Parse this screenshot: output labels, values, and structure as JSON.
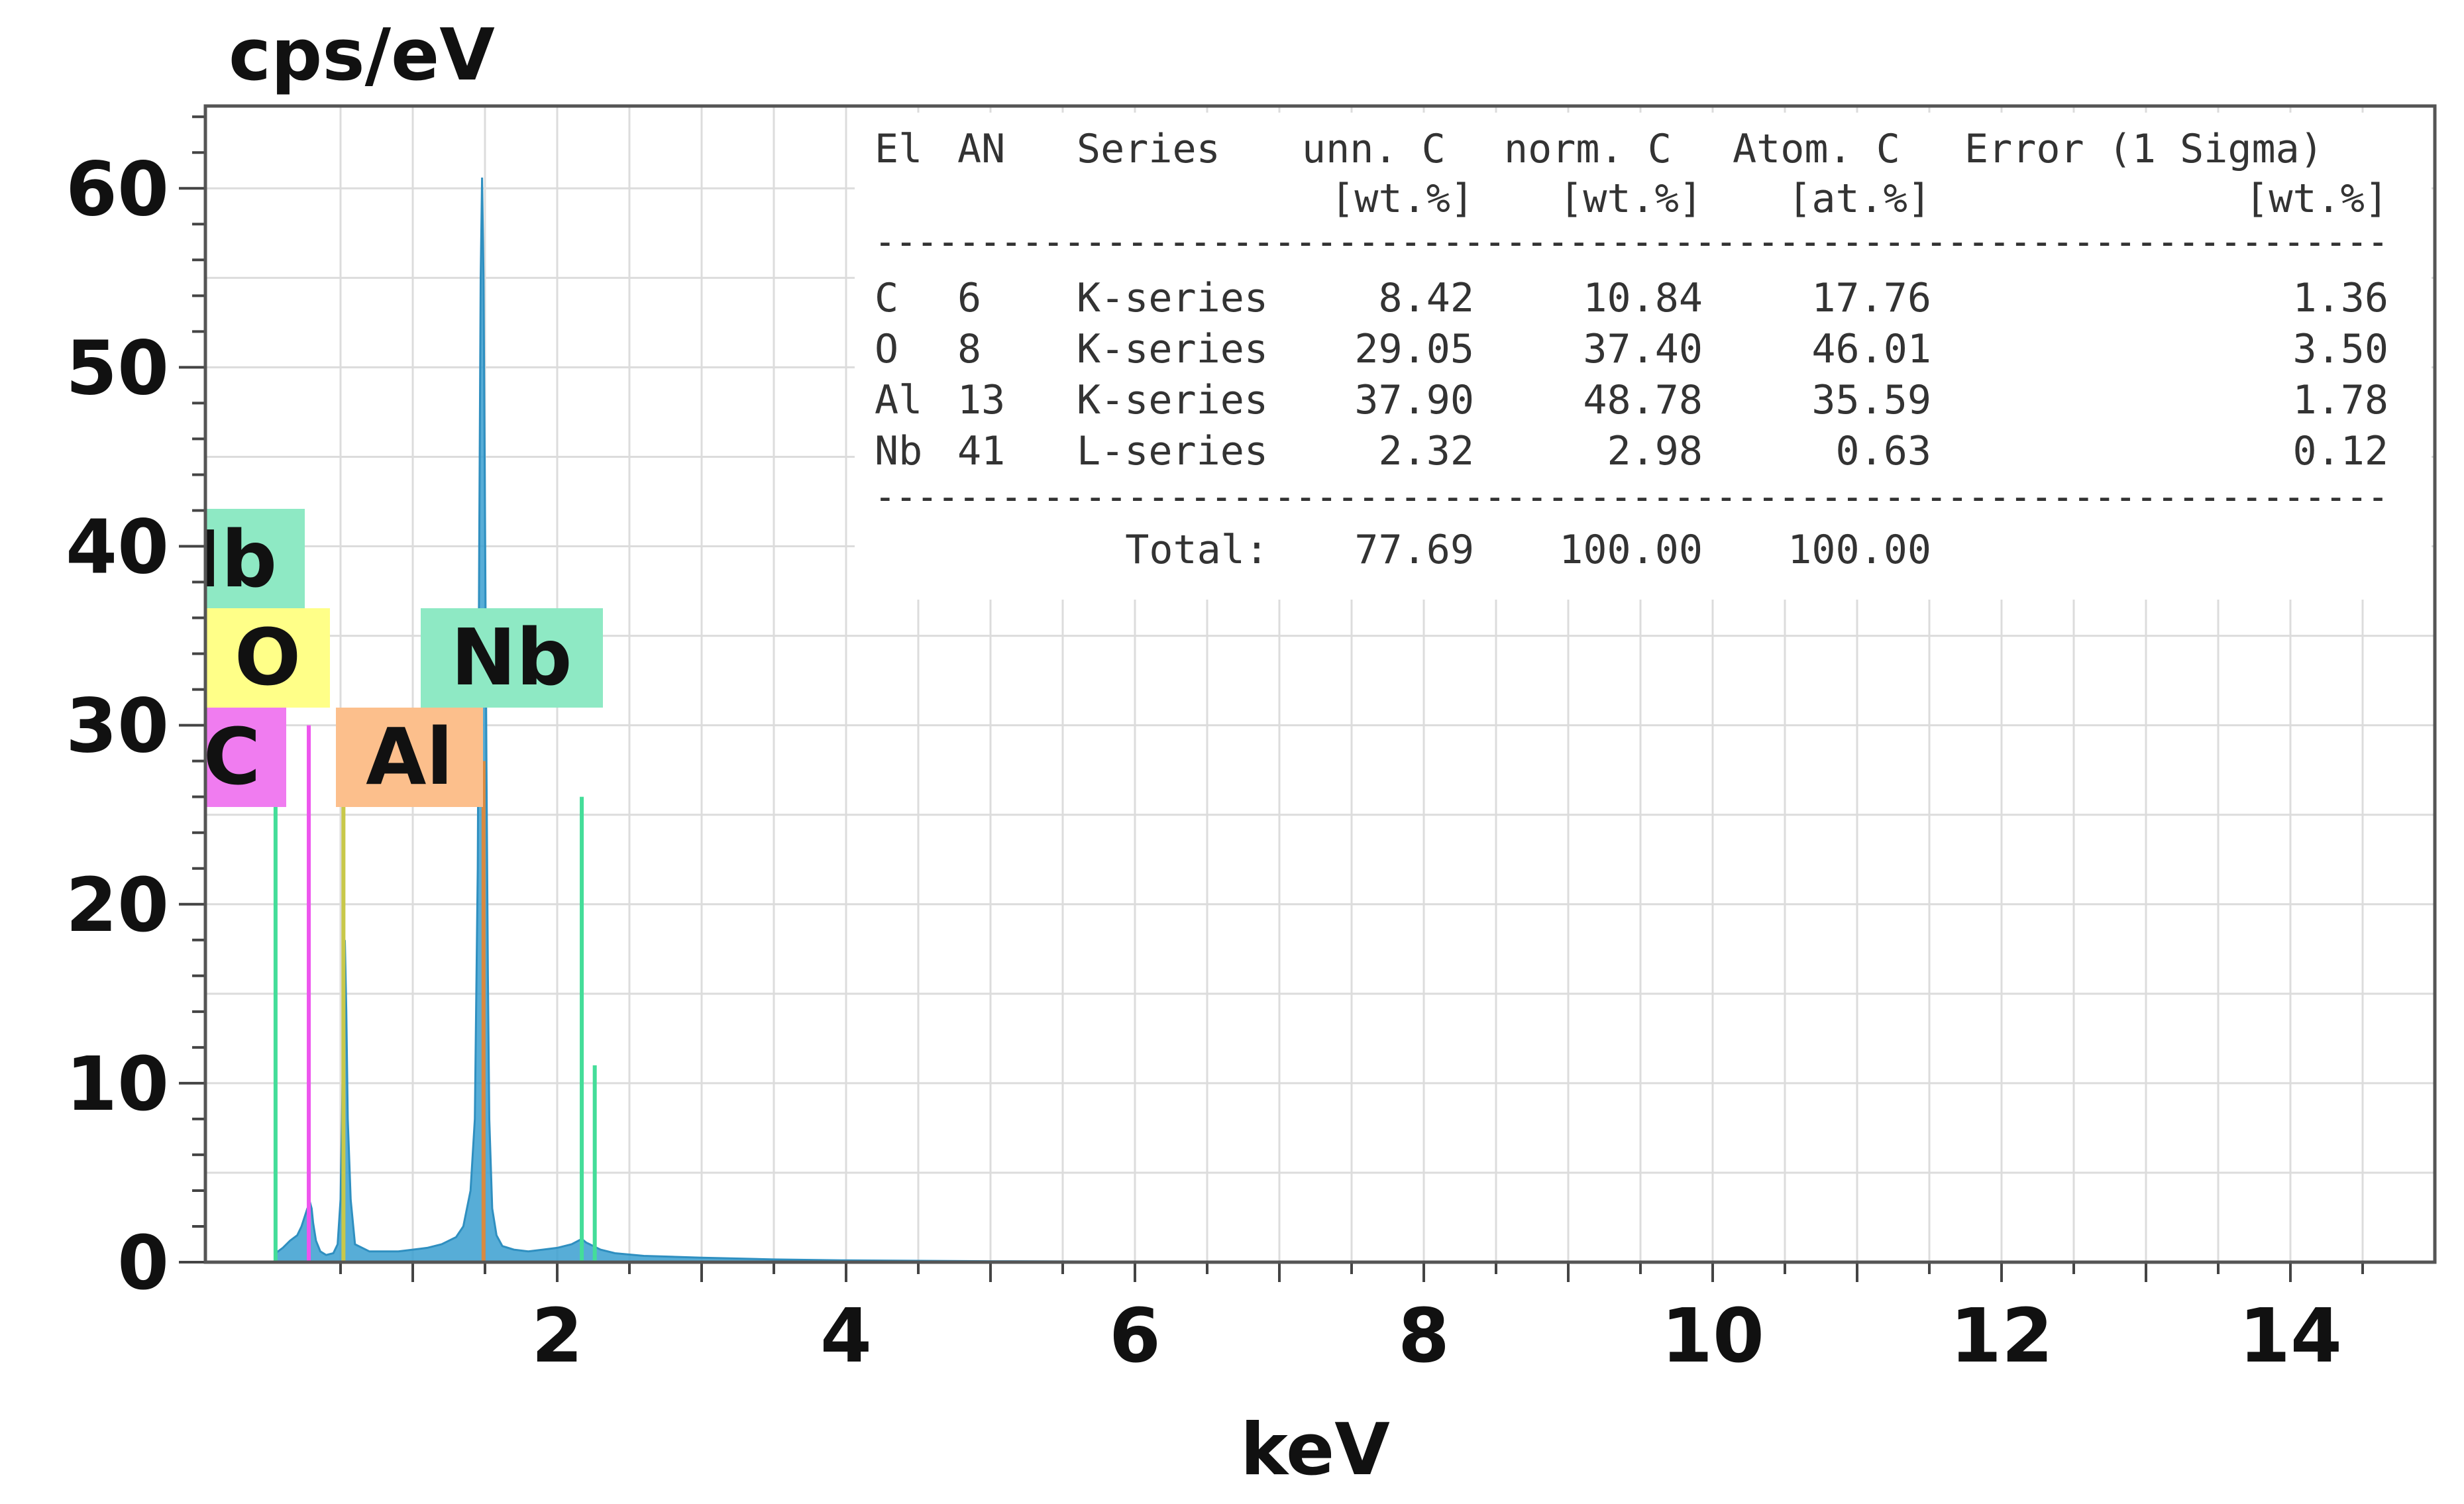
{
  "chart_data": {
    "type": "line",
    "title": "",
    "ylabel": "cps/eV",
    "xlabel": "keV",
    "xlim": [
      0,
      15
    ],
    "ylim": [
      0,
      60
    ],
    "x_ticks": [
      2,
      4,
      6,
      8,
      10,
      12,
      14
    ],
    "x_tick_labels": [
      "2",
      "4",
      "6",
      "8",
      "10",
      "12",
      "14"
    ],
    "y_ticks": [
      0,
      10,
      20,
      30,
      40,
      50,
      60
    ],
    "y_tick_labels": [
      "0",
      "10",
      "20",
      "30",
      "40",
      "50",
      "60"
    ],
    "grid": true,
    "spectrum": {
      "color": "#3a9fd0",
      "x": [
        0.05,
        0.1,
        0.15,
        0.2,
        0.23,
        0.25,
        0.27,
        0.29,
        0.3,
        0.31,
        0.33,
        0.36,
        0.4,
        0.45,
        0.48,
        0.5,
        0.51,
        0.52,
        0.53,
        0.54,
        0.55,
        0.57,
        0.6,
        0.7,
        0.8,
        0.9,
        1.0,
        1.1,
        1.2,
        1.3,
        1.35,
        1.4,
        1.43,
        1.45,
        1.46,
        1.47,
        1.48,
        1.49,
        1.5,
        1.51,
        1.52,
        1.53,
        1.55,
        1.58,
        1.62,
        1.7,
        1.8,
        1.9,
        2.0,
        2.1,
        2.17,
        2.2,
        2.25,
        2.3,
        2.4,
        2.6,
        3.0,
        3.5,
        4.0,
        5.0,
        6.0,
        8.0,
        10.0,
        12.0,
        14.0,
        14.9
      ],
      "y": [
        0.5,
        0.8,
        1.2,
        1.5,
        2.0,
        2.5,
        3.0,
        3.3,
        3.0,
        2.2,
        1.2,
        0.6,
        0.4,
        0.5,
        1.0,
        3.5,
        8.0,
        14.0,
        18.0,
        14.0,
        8.0,
        3.5,
        1.0,
        0.6,
        0.6,
        0.6,
        0.7,
        0.8,
        1.0,
        1.4,
        2.0,
        4.0,
        8.0,
        22.0,
        40.0,
        55.0,
        60.6,
        55.0,
        42.0,
        28.0,
        16.0,
        8.0,
        3.0,
        1.5,
        0.9,
        0.7,
        0.6,
        0.7,
        0.8,
        1.0,
        1.3,
        1.1,
        0.9,
        0.7,
        0.5,
        0.35,
        0.25,
        0.15,
        0.1,
        0.05,
        0.03,
        0.02,
        0.02,
        0.02,
        0.02,
        0.02
      ]
    },
    "element_lines": [
      {
        "name": "C",
        "energy": 0.28,
        "height": 30,
        "color": "#ee55ee"
      },
      {
        "name": "O",
        "energy": 0.52,
        "height": 27,
        "color": "#c8c84a"
      },
      {
        "name": "Al",
        "energy": 1.49,
        "height": 28,
        "color": "#d98a40"
      },
      {
        "name": "Nb",
        "energy": 2.17,
        "height": 26,
        "color": "#44dd99"
      },
      {
        "name": "Nb",
        "energy": 2.26,
        "height": 11,
        "color": "#44dd99"
      },
      {
        "name": "Nb",
        "energy": 0.05,
        "height": 30,
        "color": "#44dd99"
      }
    ],
    "peak_labels": [
      {
        "text": "Nb",
        "color": "#8ee9c4"
      },
      {
        "text": "O",
        "color": "#ffff88"
      },
      {
        "text": "Nb",
        "color": "#8ee9c4"
      },
      {
        "text": "C",
        "color": "#f07cf0"
      },
      {
        "text": "Al",
        "color": "#fcbf8c"
      }
    ]
  },
  "table": {
    "header": {
      "line1": [
        "El",
        "AN",
        "Series",
        "unn. C",
        "norm. C",
        "Atom. C",
        "Error (1 Sigma)"
      ],
      "line2": [
        "[wt.%]",
        "[wt.%]",
        "[at.%]",
        "[wt.%]"
      ]
    },
    "separator": "------------------------------------------------------------------------",
    "rows": [
      [
        "C",
        "6",
        "K-series",
        "8.42",
        "10.84",
        "17.76",
        "1.36"
      ],
      [
        "O",
        "8",
        "K-series",
        "29.05",
        "37.40",
        "46.01",
        "3.50"
      ],
      [
        "Al",
        "13",
        "K-series",
        "37.90",
        "48.78",
        "35.59",
        "1.78"
      ],
      [
        "Nb",
        "41",
        "L-series",
        "2.32",
        "2.98",
        "0.63",
        "0.12"
      ]
    ],
    "total": [
      "Total:",
      "77.69",
      "100.00",
      "100.00"
    ]
  }
}
